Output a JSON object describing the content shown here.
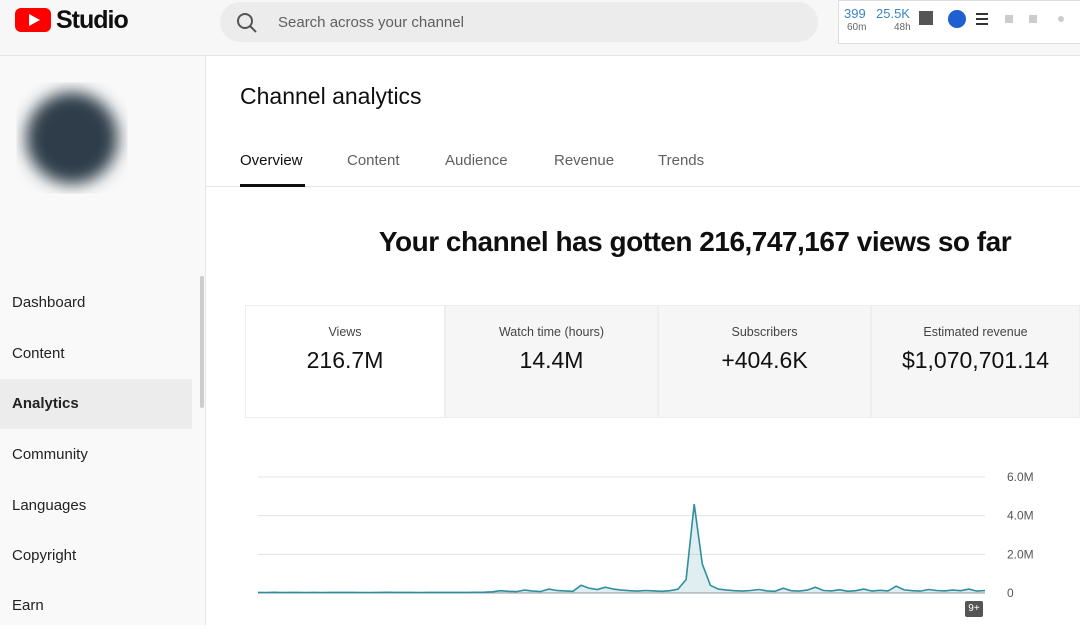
{
  "header": {
    "logo": "Studio",
    "search_placeholder": "Search across your channel",
    "extension": {
      "stat1": "399",
      "stat1_sub": "60m",
      "stat2": "25.5K",
      "stat2_sub": "48h"
    }
  },
  "sidebar": {
    "items": [
      "Dashboard",
      "Content",
      "Analytics",
      "Community",
      "Languages",
      "Copyright",
      "Earn"
    ],
    "active": 2
  },
  "page": {
    "title": "Channel analytics",
    "tabs": [
      "Overview",
      "Content",
      "Audience",
      "Revenue",
      "Trends"
    ],
    "active_tab": 0,
    "headline": "Your channel has gotten 216,747,167 views so far",
    "metrics": [
      {
        "label": "Views",
        "value": "216.7M"
      },
      {
        "label": "Watch time (hours)",
        "value": "14.4M"
      },
      {
        "label": "Subscribers",
        "value": "+404.6K"
      },
      {
        "label": "Estimated revenue",
        "value": "$1,070,701.14"
      }
    ],
    "badge": "9+"
  },
  "chart_data": {
    "type": "line",
    "color": "#2f8fa0",
    "values": [
      30000,
      25000,
      35000,
      28000,
      30000,
      32000,
      27000,
      30000,
      26000,
      31000,
      29000,
      33000,
      30000,
      28000,
      27000,
      30000,
      34000,
      29000,
      31000,
      30000,
      28000,
      32000,
      30000,
      29000,
      31000,
      33000,
      30000,
      35000,
      40000,
      60000,
      120000,
      90000,
      70000,
      150000,
      100000,
      80000,
      200000,
      130000,
      110000,
      90000,
      400000,
      250000,
      180000,
      300000,
      200000,
      150000,
      120000,
      100000,
      130000,
      110000,
      90000,
      120000,
      200000,
      700000,
      4600000,
      1500000,
      400000,
      200000,
      150000,
      120000,
      100000,
      130000,
      180000,
      110000,
      90000,
      250000,
      120000,
      100000,
      150000,
      300000,
      130000,
      110000,
      170000,
      90000,
      120000,
      200000,
      100000,
      140000,
      110000,
      350000,
      160000,
      120000,
      100000,
      180000,
      130000,
      110000,
      150000,
      120000,
      200000,
      100000,
      130000
    ],
    "ylim": [
      0,
      6000000
    ],
    "yticks": [
      0,
      {
        "value": 2000000,
        "label": "2.0M"
      },
      {
        "value": 4000000,
        "label": "4.0M"
      },
      {
        "value": 6000000,
        "label": "6.0M"
      }
    ],
    "grid": true
  }
}
